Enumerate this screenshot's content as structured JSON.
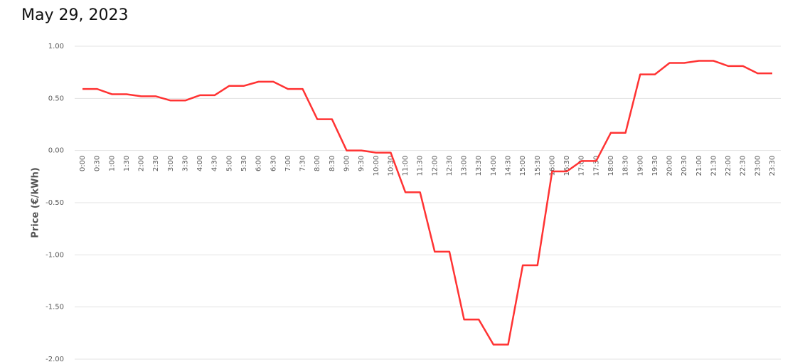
{
  "chart_data": {
    "type": "line",
    "title": "May 29, 2023",
    "y_label": "Price (€/kWh)",
    "categories": [
      "0:00",
      "0:30",
      "1:00",
      "1:30",
      "2:00",
      "2:30",
      "3:00",
      "3:30",
      "4:00",
      "4:30",
      "5:00",
      "5:30",
      "6:00",
      "6:30",
      "7:00",
      "7:30",
      "8:00",
      "8:30",
      "9:00",
      "9:30",
      "10:00",
      "10:30",
      "11:00",
      "11:30",
      "12:00",
      "12:30",
      "13:00",
      "13:30",
      "14:00",
      "14:30",
      "15:00",
      "15:30",
      "16:00",
      "16:30",
      "17:00",
      "17:30",
      "18:00",
      "18:30",
      "19:00",
      "19:30",
      "20:00",
      "20:30",
      "21:00",
      "21:30",
      "22:00",
      "22:30",
      "23:00",
      "23:30"
    ],
    "series": [
      {
        "color": "#ff3333",
        "values": [
          0.59,
          0.59,
          0.54,
          0.54,
          0.52,
          0.52,
          0.48,
          0.48,
          0.53,
          0.53,
          0.62,
          0.62,
          0.66,
          0.66,
          0.59,
          0.59,
          0.3,
          0.3,
          0.0,
          0.0,
          -0.02,
          -0.02,
          -0.4,
          -0.4,
          -0.97,
          -0.97,
          -1.62,
          -1.62,
          -1.86,
          -1.86,
          -1.1,
          -1.1,
          -0.2,
          -0.2,
          -0.1,
          -0.1,
          0.17,
          0.17,
          0.73,
          0.73,
          0.84,
          0.84,
          0.86,
          0.86,
          0.81,
          0.81,
          0.74,
          0.74
        ]
      }
    ],
    "ylim": [
      -2,
      1
    ],
    "yticks": [
      {
        "value": 1,
        "label": "1.00"
      },
      {
        "value": 0.5,
        "label": "0.50"
      },
      {
        "value": 0,
        "label": "0.00"
      },
      {
        "value": -0.5,
        "label": "-0.50"
      },
      {
        "value": -1,
        "label": "-1.00"
      },
      {
        "value": -1.5,
        "label": "-1.50"
      },
      {
        "value": -2,
        "label": "-2.00"
      }
    ],
    "grid": true
  }
}
